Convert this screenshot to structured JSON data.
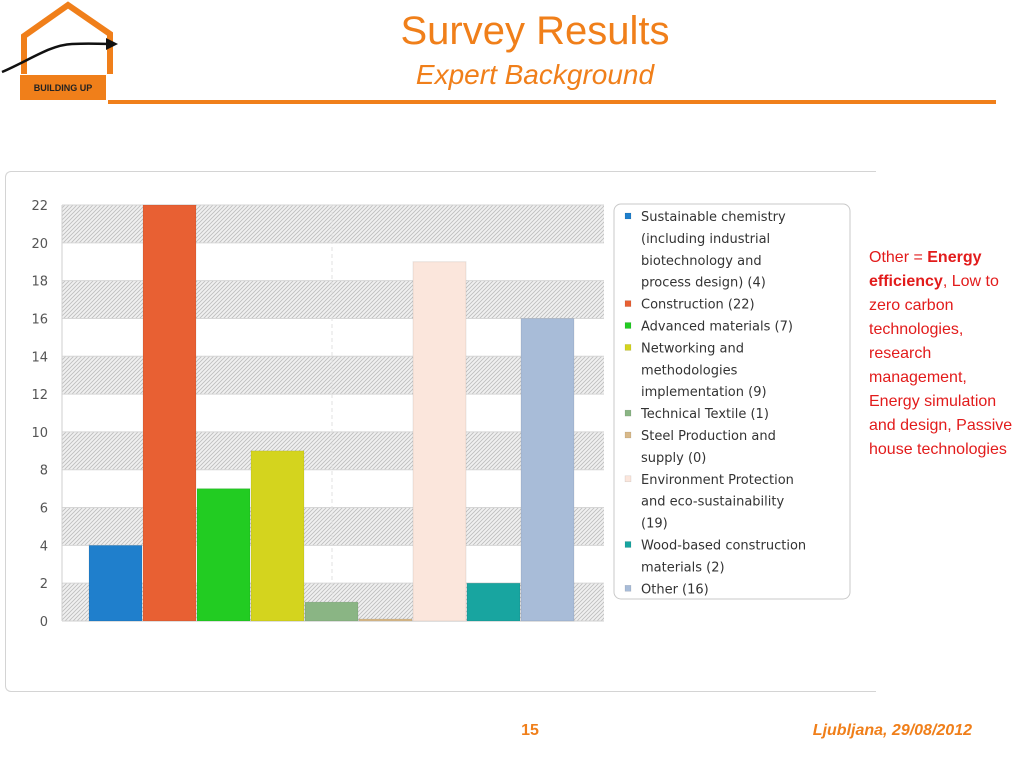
{
  "slide": {
    "title": "Survey Results",
    "subtitle": "Expert Background",
    "page_number": "15",
    "footer": "Ljubljana, 29/08/2012",
    "logo_text": "BUILDING UP",
    "note": {
      "prefix": "Other = ",
      "bold": "Energy efficiency",
      "after_bold": ",",
      "rest": "Low to zero carbon technologies, research management, Energy simulation and design, Passive house technologies"
    }
  },
  "colors": {
    "accent": "#f07f1a",
    "note_red": "#e21b1b"
  },
  "chart_data": {
    "type": "bar",
    "title": "",
    "xlabel": "",
    "ylabel": "",
    "ylim": [
      0,
      22
    ],
    "yticks": [
      0,
      2,
      4,
      6,
      8,
      10,
      12,
      14,
      16,
      18,
      20,
      22
    ],
    "grid": true,
    "legend_position": "right",
    "categories": [
      "Sustainable chemistry (including industrial biotechnology and process design) (4)",
      "Construction (22)",
      "Advanced materials (7)",
      "Networking and methodologies implementation (9)",
      "Technical Textile (1)",
      "Steel Production and supply (0)",
      "Environment Protection and eco-sustainability (19)",
      "Wood-based construction materials (2)",
      "Other (16)"
    ],
    "legend_lines": [
      [
        "Sustainable chemistry",
        "(including industrial",
        "biotechnology and",
        "process design) (4)"
      ],
      [
        "Construction (22)"
      ],
      [
        "Advanced materials (7)"
      ],
      [
        "Networking and",
        "methodologies",
        "implementation (9)"
      ],
      [
        "Technical Textile (1)"
      ],
      [
        "Steel Production and",
        "supply (0)"
      ],
      [
        "Environment Protection",
        "and eco-sustainability",
        "(19)"
      ],
      [
        "Wood-based construction",
        "materials (2)"
      ],
      [
        "Other (16)"
      ]
    ],
    "values": [
      4,
      22,
      7,
      9,
      1,
      0,
      19,
      2,
      16
    ],
    "colors": [
      "#1f7fcc",
      "#e86033",
      "#22cc22",
      "#d4d41e",
      "#8ab584",
      "#d8b98a",
      "#fbe6dc",
      "#18a5a0",
      "#a8bcd8"
    ]
  }
}
